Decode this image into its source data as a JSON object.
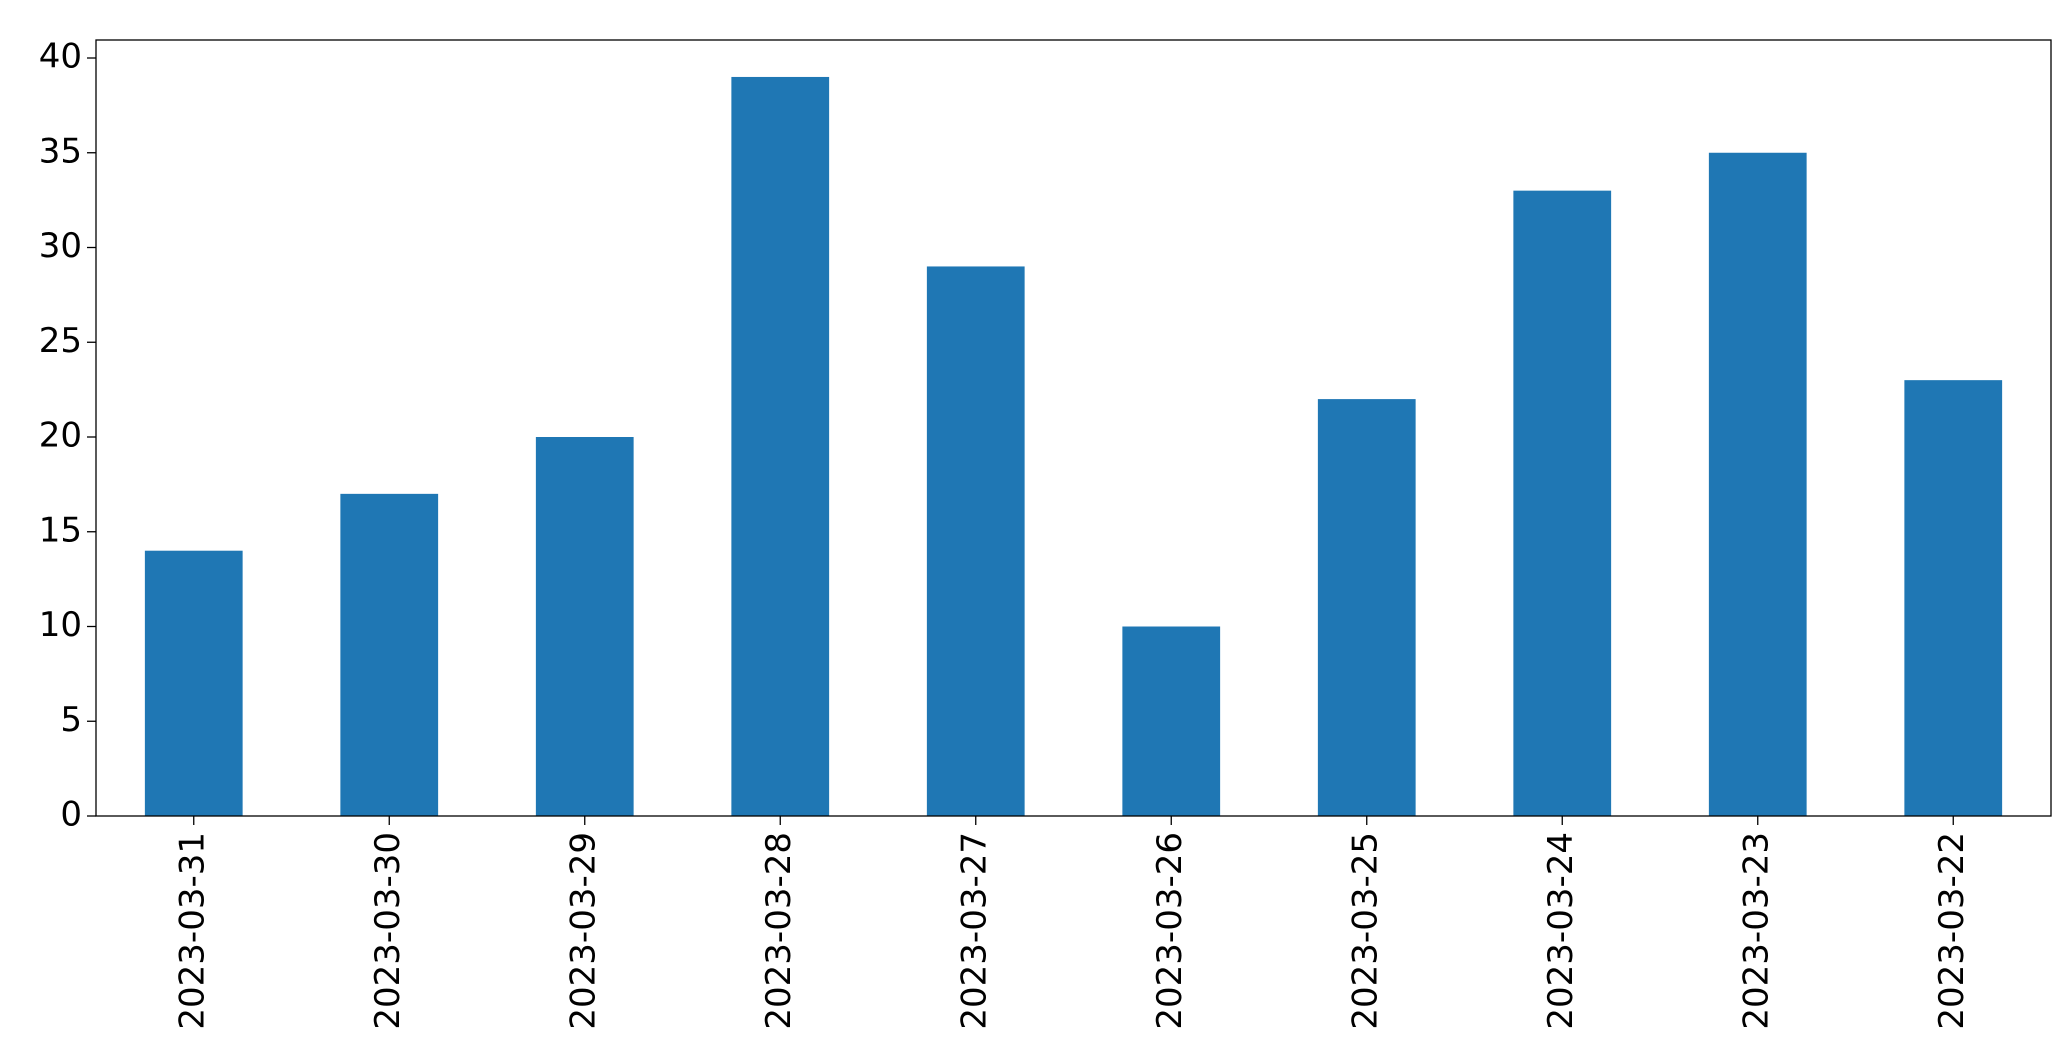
{
  "chart_data": {
    "type": "bar",
    "categories": [
      "2023-03-31",
      "2023-03-30",
      "2023-03-29",
      "2023-03-28",
      "2023-03-27",
      "2023-03-26",
      "2023-03-25",
      "2023-03-24",
      "2023-03-23",
      "2023-03-22"
    ],
    "values": [
      14,
      17,
      20,
      39,
      29,
      10,
      22,
      33,
      35,
      23
    ],
    "color": "#1f77b4",
    "ylim": [
      0,
      40.95
    ],
    "yticks": [
      0,
      5,
      10,
      15,
      20,
      25,
      30,
      35,
      40
    ],
    "grid": false
  }
}
